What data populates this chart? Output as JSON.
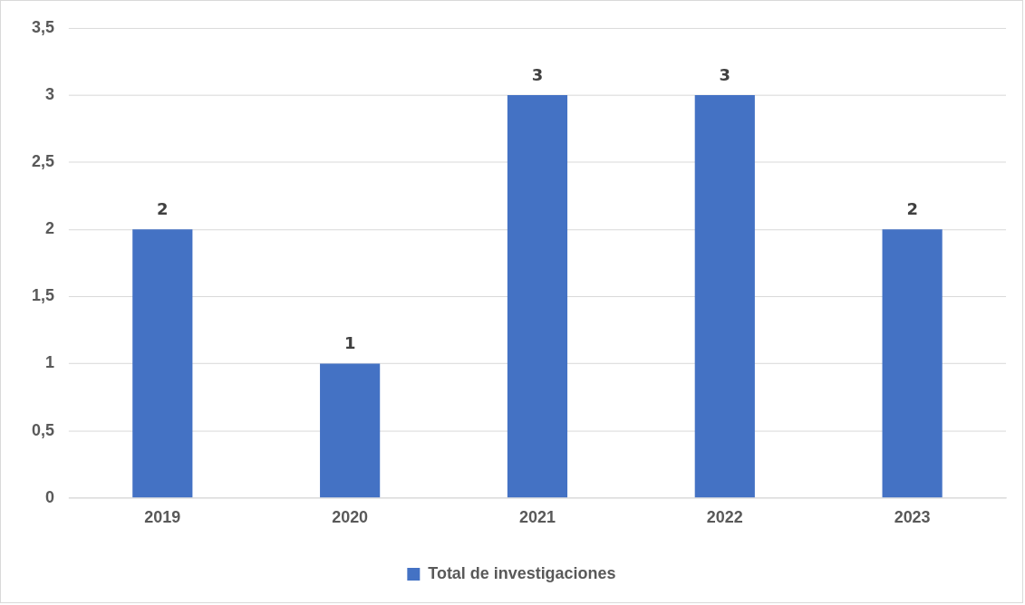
{
  "chart_data": {
    "type": "bar",
    "categories": [
      "2019",
      "2020",
      "2021",
      "2022",
      "2023"
    ],
    "series": [
      {
        "name": "Total de investigaciones",
        "color": "#4472c4",
        "values": [
          2,
          1,
          3,
          3,
          2
        ]
      }
    ],
    "ylim": [
      0,
      3.5
    ],
    "yticks": [
      0,
      {
        "value": 0.5,
        "label": "0,5"
      },
      1,
      {
        "value": 1.5,
        "label": "1,5"
      },
      2,
      {
        "value": 2.5,
        "label": "2,5"
      },
      3,
      {
        "value": 3.5,
        "label": "3,5"
      }
    ],
    "grid": "y",
    "legend": "bottom",
    "data_labels": true
  }
}
